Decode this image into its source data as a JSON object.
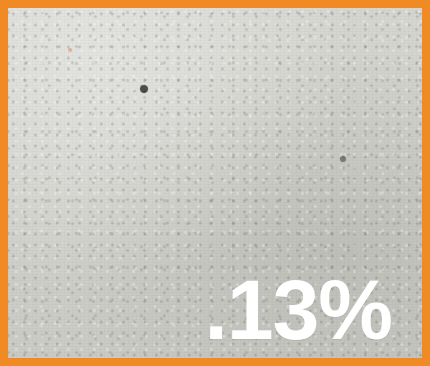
{
  "overlay": {
    "text": ".13%"
  },
  "colors": {
    "border": "#f08a24",
    "text": "#ffffff"
  }
}
